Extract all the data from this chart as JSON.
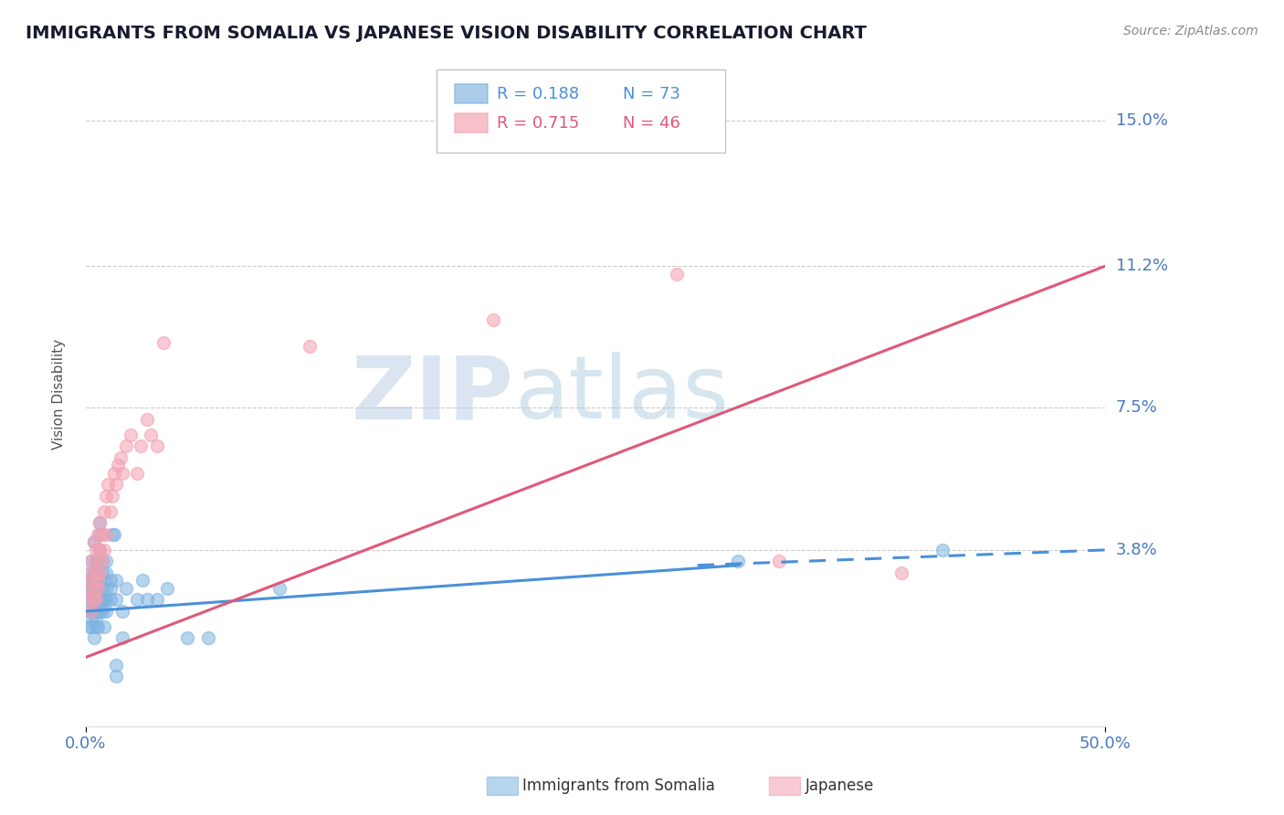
{
  "title": "IMMIGRANTS FROM SOMALIA VS JAPANESE VISION DISABILITY CORRELATION CHART",
  "source": "Source: ZipAtlas.com",
  "ylabel": "Vision Disability",
  "xlim": [
    0.0,
    0.5
  ],
  "ylim": [
    -0.008,
    0.165
  ],
  "yticks": [
    0.0,
    0.038,
    0.075,
    0.112,
    0.15
  ],
  "ytick_labels": [
    "",
    "3.8%",
    "7.5%",
    "11.2%",
    "15.0%"
  ],
  "xtick_labels": [
    "0.0%",
    "50.0%"
  ],
  "grid_color": "#cccccc",
  "background_color": "#ffffff",
  "somalia_color": "#7eb3e0",
  "japanese_color": "#f4a0b0",
  "somalia_line_color": "#4a90d9",
  "japanese_line_color": "#e05878",
  "watermark_ZIP": "ZIP",
  "watermark_atlas": "atlas",
  "somalia_line": {
    "x0": 0.0,
    "y0": 0.022,
    "x1": 0.5,
    "y1": 0.038
  },
  "somalia_dash_line": {
    "x0": 0.3,
    "y0": 0.034,
    "x1": 0.5,
    "y1": 0.038
  },
  "japanese_line": {
    "x0": 0.0,
    "y0": 0.01,
    "x1": 0.5,
    "y1": 0.112
  },
  "somalia_scatter": [
    [
      0.001,
      0.028
    ],
    [
      0.002,
      0.03
    ],
    [
      0.002,
      0.025
    ],
    [
      0.002,
      0.022
    ],
    [
      0.002,
      0.018
    ],
    [
      0.002,
      0.032
    ],
    [
      0.003,
      0.025
    ],
    [
      0.003,
      0.03
    ],
    [
      0.003,
      0.022
    ],
    [
      0.003,
      0.028
    ],
    [
      0.003,
      0.035
    ],
    [
      0.003,
      0.018
    ],
    [
      0.003,
      0.02
    ],
    [
      0.004,
      0.028
    ],
    [
      0.004,
      0.022
    ],
    [
      0.004,
      0.032
    ],
    [
      0.004,
      0.025
    ],
    [
      0.004,
      0.04
    ],
    [
      0.004,
      0.015
    ],
    [
      0.004,
      0.03
    ],
    [
      0.005,
      0.028
    ],
    [
      0.005,
      0.032
    ],
    [
      0.005,
      0.025
    ],
    [
      0.005,
      0.02
    ],
    [
      0.005,
      0.018
    ],
    [
      0.005,
      0.035
    ],
    [
      0.006,
      0.03
    ],
    [
      0.006,
      0.025
    ],
    [
      0.006,
      0.022
    ],
    [
      0.006,
      0.028
    ],
    [
      0.006,
      0.018
    ],
    [
      0.006,
      0.035
    ],
    [
      0.007,
      0.03
    ],
    [
      0.007,
      0.025
    ],
    [
      0.007,
      0.038
    ],
    [
      0.007,
      0.022
    ],
    [
      0.007,
      0.045
    ],
    [
      0.007,
      0.042
    ],
    [
      0.008,
      0.028
    ],
    [
      0.008,
      0.032
    ],
    [
      0.008,
      0.025
    ],
    [
      0.008,
      0.022
    ],
    [
      0.008,
      0.035
    ],
    [
      0.009,
      0.03
    ],
    [
      0.009,
      0.025
    ],
    [
      0.009,
      0.018
    ],
    [
      0.01,
      0.028
    ],
    [
      0.01,
      0.032
    ],
    [
      0.01,
      0.022
    ],
    [
      0.01,
      0.025
    ],
    [
      0.01,
      0.035
    ],
    [
      0.012,
      0.03
    ],
    [
      0.012,
      0.025
    ],
    [
      0.012,
      0.028
    ],
    [
      0.013,
      0.042
    ],
    [
      0.014,
      0.042
    ],
    [
      0.015,
      0.03
    ],
    [
      0.015,
      0.025
    ],
    [
      0.015,
      0.005
    ],
    [
      0.015,
      0.008
    ],
    [
      0.018,
      0.022
    ],
    [
      0.018,
      0.015
    ],
    [
      0.02,
      0.028
    ],
    [
      0.025,
      0.025
    ],
    [
      0.028,
      0.03
    ],
    [
      0.03,
      0.025
    ],
    [
      0.035,
      0.025
    ],
    [
      0.04,
      0.028
    ],
    [
      0.05,
      0.015
    ],
    [
      0.06,
      0.015
    ],
    [
      0.095,
      0.028
    ],
    [
      0.32,
      0.035
    ],
    [
      0.42,
      0.038
    ]
  ],
  "japanese_scatter": [
    [
      0.001,
      0.028
    ],
    [
      0.002,
      0.025
    ],
    [
      0.002,
      0.032
    ],
    [
      0.003,
      0.03
    ],
    [
      0.003,
      0.022
    ],
    [
      0.003,
      0.035
    ],
    [
      0.004,
      0.028
    ],
    [
      0.004,
      0.04
    ],
    [
      0.004,
      0.025
    ],
    [
      0.005,
      0.032
    ],
    [
      0.005,
      0.038
    ],
    [
      0.005,
      0.025
    ],
    [
      0.006,
      0.035
    ],
    [
      0.006,
      0.042
    ],
    [
      0.006,
      0.028
    ],
    [
      0.006,
      0.03
    ],
    [
      0.007,
      0.038
    ],
    [
      0.007,
      0.045
    ],
    [
      0.007,
      0.032
    ],
    [
      0.008,
      0.042
    ],
    [
      0.008,
      0.035
    ],
    [
      0.009,
      0.048
    ],
    [
      0.009,
      0.038
    ],
    [
      0.01,
      0.052
    ],
    [
      0.01,
      0.042
    ],
    [
      0.011,
      0.055
    ],
    [
      0.012,
      0.048
    ],
    [
      0.013,
      0.052
    ],
    [
      0.014,
      0.058
    ],
    [
      0.015,
      0.055
    ],
    [
      0.016,
      0.06
    ],
    [
      0.017,
      0.062
    ],
    [
      0.018,
      0.058
    ],
    [
      0.02,
      0.065
    ],
    [
      0.022,
      0.068
    ],
    [
      0.025,
      0.058
    ],
    [
      0.027,
      0.065
    ],
    [
      0.03,
      0.072
    ],
    [
      0.032,
      0.068
    ],
    [
      0.035,
      0.065
    ],
    [
      0.11,
      0.091
    ],
    [
      0.2,
      0.098
    ],
    [
      0.29,
      0.11
    ],
    [
      0.34,
      0.035
    ],
    [
      0.4,
      0.032
    ],
    [
      0.038,
      0.092
    ]
  ]
}
